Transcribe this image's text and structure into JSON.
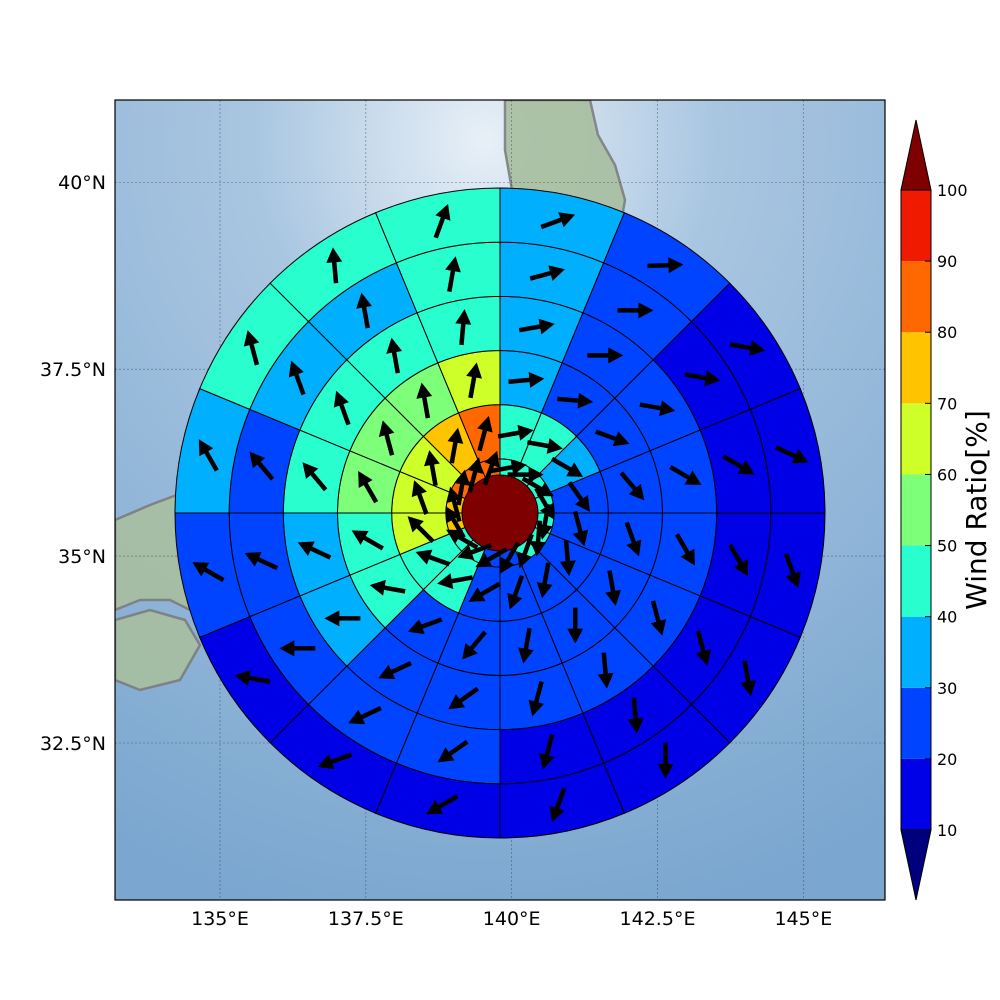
{
  "chart_data": {
    "type": "polar-sector-map",
    "title": "",
    "x_ticks": [
      "135°E",
      "137.5°E",
      "140°E",
      "142.5°E",
      "145°E"
    ],
    "y_ticks": [
      "40°N",
      "37.5°N",
      "35°N",
      "32.5°N"
    ],
    "x_tick_values": [
      135,
      137.5,
      140,
      142.5,
      145
    ],
    "y_tick_values": [
      40,
      37.5,
      35,
      32.5
    ],
    "lon_range": [
      133.2,
      146.4
    ],
    "lat_range": [
      30.4,
      41.1
    ],
    "center_lon": 139.8,
    "center_lat": 35.7,
    "rings_km": [
      50,
      100,
      150,
      200,
      250,
      300
    ],
    "num_sectors": 16,
    "sector_start_deg": 0,
    "sector_direction": "clockwise-from-north",
    "center_value": 100,
    "rings": [
      {
        "ring": 1,
        "values": [
          40,
          40,
          40,
          40,
          40,
          40,
          40,
          20,
          20,
          40,
          40,
          70,
          70,
          80,
          80,
          80
        ],
        "wind_dir_deg": [
          80,
          90,
          120,
          150,
          190,
          185,
          200,
          210,
          240,
          250,
          300,
          330,
          345,
          10,
          15,
          20
        ]
      },
      {
        "ring": 2,
        "values": [
          40,
          40,
          30,
          20,
          20,
          20,
          20,
          20,
          20,
          40,
          40,
          60,
          60,
          60,
          70,
          80
        ],
        "wind_dir_deg": [
          80,
          100,
          120,
          145,
          165,
          175,
          190,
          200,
          240,
          260,
          290,
          315,
          340,
          350,
          10,
          15
        ]
      },
      {
        "ring": 3,
        "values": [
          30,
          20,
          20,
          20,
          20,
          20,
          20,
          20,
          20,
          20,
          40,
          40,
          50,
          50,
          50,
          60
        ],
        "wind_dir_deg": [
          85,
          95,
          110,
          140,
          160,
          170,
          180,
          190,
          220,
          250,
          280,
          300,
          330,
          345,
          350,
          10
        ]
      },
      {
        "ring": 4,
        "values": [
          30,
          20,
          20,
          20,
          20,
          20,
          20,
          20,
          20,
          20,
          30,
          30,
          40,
          40,
          40,
          40
        ],
        "wind_dir_deg": [
          80,
          90,
          100,
          120,
          150,
          165,
          175,
          195,
          235,
          245,
          270,
          295,
          320,
          340,
          350,
          5
        ]
      },
      {
        "ring": 5,
        "values": [
          30,
          20,
          10,
          10,
          10,
          10,
          10,
          10,
          20,
          20,
          20,
          20,
          20,
          30,
          30,
          40
        ],
        "wind_dir_deg": [
          75,
          90,
          100,
          120,
          150,
          165,
          175,
          195,
          235,
          245,
          270,
          295,
          320,
          340,
          350,
          10
        ]
      },
      {
        "ring": 6,
        "values": [
          30,
          20,
          10,
          10,
          10,
          10,
          10,
          10,
          10,
          10,
          10,
          20,
          30,
          40,
          40,
          40
        ],
        "wind_dir_deg": [
          70,
          88,
          100,
          115,
          160,
          170,
          180,
          200,
          240,
          250,
          280,
          300,
          330,
          345,
          355,
          20
        ]
      }
    ],
    "colorbar": {
      "label": "Wind Ratio[%]",
      "ticks": [
        10,
        20,
        30,
        40,
        50,
        60,
        70,
        80,
        90,
        100
      ],
      "levels": [
        {
          "range": [
            0,
            10
          ],
          "color": "#00007f"
        },
        {
          "range": [
            10,
            20
          ],
          "color": "#0000e6"
        },
        {
          "range": [
            20,
            30
          ],
          "color": "#0044ff"
        },
        {
          "range": [
            30,
            40
          ],
          "color": "#00b0ff"
        },
        {
          "range": [
            40,
            50
          ],
          "color": "#29ffce"
        },
        {
          "range": [
            50,
            60
          ],
          "color": "#7dff7a"
        },
        {
          "range": [
            60,
            70
          ],
          "color": "#ceff29"
        },
        {
          "range": [
            70,
            80
          ],
          "color": "#ffc400"
        },
        {
          "range": [
            80,
            90
          ],
          "color": "#ff6800"
        },
        {
          "range": [
            90,
            100
          ],
          "color": "#ef1a00"
        },
        {
          "range": [
            100,
            110
          ],
          "color": "#7f0000"
        }
      ],
      "extend": "both"
    },
    "grid": true,
    "colors": {
      "ocean": "#8fb4d6",
      "ocean_light": "#d6e6f2",
      "land": "#a8bfa0",
      "coastline": "#7d7d7d",
      "arrow": "#000000"
    }
  }
}
